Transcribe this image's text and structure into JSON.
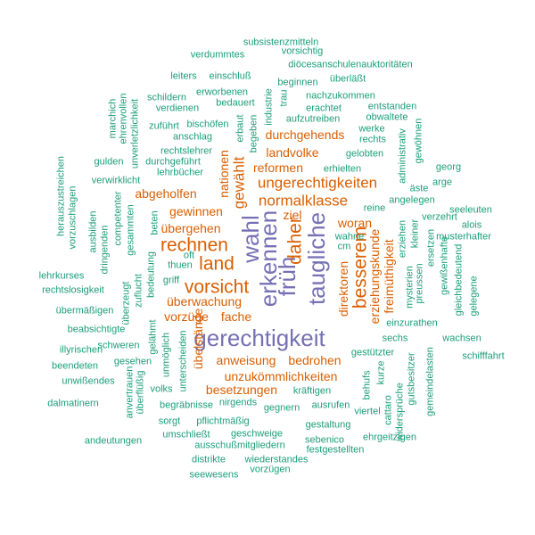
{
  "colors": {
    "small": "#1b9e77",
    "mid": "#d95f02",
    "large": "#7570b3"
  },
  "words": [
    {
      "text": "subsistenzmitteln",
      "level": 1
    },
    {
      "text": "verdummtes",
      "level": 1
    },
    {
      "text": "vorsichtig",
      "level": 1
    },
    {
      "text": "diöcesanschulenauktoritäten",
      "level": 1
    },
    {
      "text": "leiters",
      "level": 1
    },
    {
      "text": "einschluß",
      "level": 1
    },
    {
      "text": "überläßt",
      "level": 1
    },
    {
      "text": "beginnen",
      "level": 1
    },
    {
      "text": "schildern",
      "level": 1
    },
    {
      "text": "erworbenen",
      "level": 1
    },
    {
      "text": "nachzukommen",
      "level": 1
    },
    {
      "text": "verdienen",
      "level": 1
    },
    {
      "text": "bedauert",
      "level": 1
    },
    {
      "text": "erachtet",
      "level": 1
    },
    {
      "text": "entstanden",
      "level": 1
    },
    {
      "text": "industrie",
      "level": 1
    },
    {
      "text": "trau",
      "level": 1
    },
    {
      "text": "aufzutreiben",
      "level": 1
    },
    {
      "text": "obwaltete",
      "level": 1
    },
    {
      "text": "marchich",
      "level": 1
    },
    {
      "text": "ehrenvollen",
      "level": 1
    },
    {
      "text": "unverletzlichkeit",
      "level": 1
    },
    {
      "text": "zuführt",
      "level": 1
    },
    {
      "text": "bischöfen",
      "level": 1
    },
    {
      "text": "anschlag",
      "level": 1
    },
    {
      "text": "erbaut",
      "level": 1
    },
    {
      "text": "begeben",
      "level": 1
    },
    {
      "text": "werke",
      "level": 1
    },
    {
      "text": "rechts",
      "level": 1
    },
    {
      "text": "durchgehends",
      "level": 2
    },
    {
      "text": "administrativ",
      "level": 1
    },
    {
      "text": "gewöhnen",
      "level": 1
    },
    {
      "text": "rechtslehrer",
      "level": 1
    },
    {
      "text": "gulden",
      "level": 1
    },
    {
      "text": "durchgeführt",
      "level": 1
    },
    {
      "text": "lehrbücher",
      "level": 1
    },
    {
      "text": "landvolke",
      "level": 2
    },
    {
      "text": "gelobten",
      "level": 1
    },
    {
      "text": "erhielten",
      "level": 1
    },
    {
      "text": "georg",
      "level": 1
    },
    {
      "text": "reformen",
      "level": 2
    },
    {
      "text": "arge",
      "level": 1
    },
    {
      "text": "verwirklicht",
      "level": 1
    },
    {
      "text": "herauszustreichen",
      "level": 1
    },
    {
      "text": "nationen",
      "level": 2
    },
    {
      "text": "gewählt",
      "level": 3
    },
    {
      "text": "ungerechtigkeiten",
      "level": 3
    },
    {
      "text": "äste",
      "level": 1
    },
    {
      "text": "angelegen",
      "level": 1
    },
    {
      "text": "seeleuten",
      "level": 1
    },
    {
      "text": "abgeholfen",
      "level": 2
    },
    {
      "text": "normalklasse",
      "level": 3
    },
    {
      "text": "vorzuschlagen",
      "level": 1
    },
    {
      "text": "ausbilden",
      "level": 1
    },
    {
      "text": "competenter",
      "level": 1
    },
    {
      "text": "gesammten",
      "level": 1
    },
    {
      "text": "dringenden",
      "level": 1
    },
    {
      "text": "gewinnen",
      "level": 2
    },
    {
      "text": "ziel",
      "level": 2
    },
    {
      "text": "reine",
      "level": 1
    },
    {
      "text": "verzehrt",
      "level": 1
    },
    {
      "text": "alois",
      "level": 1
    },
    {
      "text": "übergehen",
      "level": 2
    },
    {
      "text": "beten",
      "level": 1
    },
    {
      "text": "woran",
      "level": 2
    },
    {
      "text": "musterhafter",
      "level": 1
    },
    {
      "text": "rechnen",
      "level": 4
    },
    {
      "text": "wahl",
      "level": 5
    },
    {
      "text": "erkennen",
      "level": 5
    },
    {
      "text": "früh",
      "level": 5
    },
    {
      "text": "daher",
      "level": 4
    },
    {
      "text": "taugliche",
      "level": 5
    },
    {
      "text": "besserem",
      "level": 4
    },
    {
      "text": "erziehungskunde",
      "level": 2
    },
    {
      "text": "wahne",
      "level": 1
    },
    {
      "text": "cm",
      "level": 1
    },
    {
      "text": "erziehen",
      "level": 1
    },
    {
      "text": "kleiner",
      "level": 1
    },
    {
      "text": "ersetzen",
      "level": 1
    },
    {
      "text": "gewißenhafte",
      "level": 1
    },
    {
      "text": "gleichbedeutend",
      "level": 1
    },
    {
      "text": "lehrkurses",
      "level": 1
    },
    {
      "text": "thuen",
      "level": 1
    },
    {
      "text": "oft",
      "level": 1
    },
    {
      "text": "land",
      "level": 4
    },
    {
      "text": "rechtslosigkeit",
      "level": 1
    },
    {
      "text": "griff",
      "level": 1
    },
    {
      "text": "bedeutung",
      "level": 1
    },
    {
      "text": "vorsicht",
      "level": 4
    },
    {
      "text": "direktoren",
      "level": 2
    },
    {
      "text": "freimüthigkeit",
      "level": 2
    },
    {
      "text": "mysterien",
      "level": 1
    },
    {
      "text": "preussen",
      "level": 1
    },
    {
      "text": "gelegene",
      "level": 1
    },
    {
      "text": "übermäßigen",
      "level": 1
    },
    {
      "text": "überzeugt",
      "level": 1
    },
    {
      "text": "zuflucht",
      "level": 1
    },
    {
      "text": "überwachung",
      "level": 2
    },
    {
      "text": "vorzüge",
      "level": 2
    },
    {
      "text": "fache",
      "level": 2
    },
    {
      "text": "einzurathen",
      "level": 1
    },
    {
      "text": "beabsichtigte",
      "level": 1
    },
    {
      "text": "gerechtigkeit",
      "level": 5
    },
    {
      "text": "sechs",
      "level": 1
    },
    {
      "text": "wachsen",
      "level": 1
    },
    {
      "text": "illyrischen",
      "level": 1
    },
    {
      "text": "gelähmt",
      "level": 1
    },
    {
      "text": "schweren",
      "level": 1
    },
    {
      "text": "unmöglich",
      "level": 1
    },
    {
      "text": "unterscheiden",
      "level": 1
    },
    {
      "text": "übelstände",
      "level": 2
    },
    {
      "text": "gestützter",
      "level": 1
    },
    {
      "text": "schifffahrt",
      "level": 1
    },
    {
      "text": "beendeten",
      "level": 1
    },
    {
      "text": "gesehen",
      "level": 1
    },
    {
      "text": "anweisung",
      "level": 2
    },
    {
      "text": "bedrohen",
      "level": 2
    },
    {
      "text": "unwißendes",
      "level": 1
    },
    {
      "text": "anvertrauen",
      "level": 1
    },
    {
      "text": "unzukömmlichkeiten",
      "level": 2
    },
    {
      "text": "überflüßig",
      "level": 1
    },
    {
      "text": "volks",
      "level": 1
    },
    {
      "text": "besetzungen",
      "level": 2
    },
    {
      "text": "kräftigen",
      "level": 1
    },
    {
      "text": "behufs",
      "level": 1
    },
    {
      "text": "kurze",
      "level": 1
    },
    {
      "text": "gutsbesitzer",
      "level": 1
    },
    {
      "text": "gemeindelasten",
      "level": 1
    },
    {
      "text": "dalmatinern",
      "level": 1
    },
    {
      "text": "begräbnisse",
      "level": 1
    },
    {
      "text": "nirgends",
      "level": 1
    },
    {
      "text": "sorgt",
      "level": 1
    },
    {
      "text": "pflichtmäßig",
      "level": 1
    },
    {
      "text": "gegnern",
      "level": 1
    },
    {
      "text": "ausrufen",
      "level": 1
    },
    {
      "text": "viertel",
      "level": 1
    },
    {
      "text": "widersprüche",
      "level": 1
    },
    {
      "text": "cattaro",
      "level": 1
    },
    {
      "text": "andeutungen",
      "level": 1
    },
    {
      "text": "umschließt",
      "level": 1
    },
    {
      "text": "geschweige",
      "level": 1
    },
    {
      "text": "gestaltung",
      "level": 1
    },
    {
      "text": "ehrgeitzigen",
      "level": 1
    },
    {
      "text": "ausschußmitgliedern",
      "level": 1
    },
    {
      "text": "sebenico",
      "level": 1
    },
    {
      "text": "festgestellten",
      "level": 1
    },
    {
      "text": "distrikte",
      "level": 1
    },
    {
      "text": "wiederstandes",
      "level": 1
    },
    {
      "text": "vorzügen",
      "level": 1
    },
    {
      "text": "seewesens",
      "level": 1
    }
  ]
}
